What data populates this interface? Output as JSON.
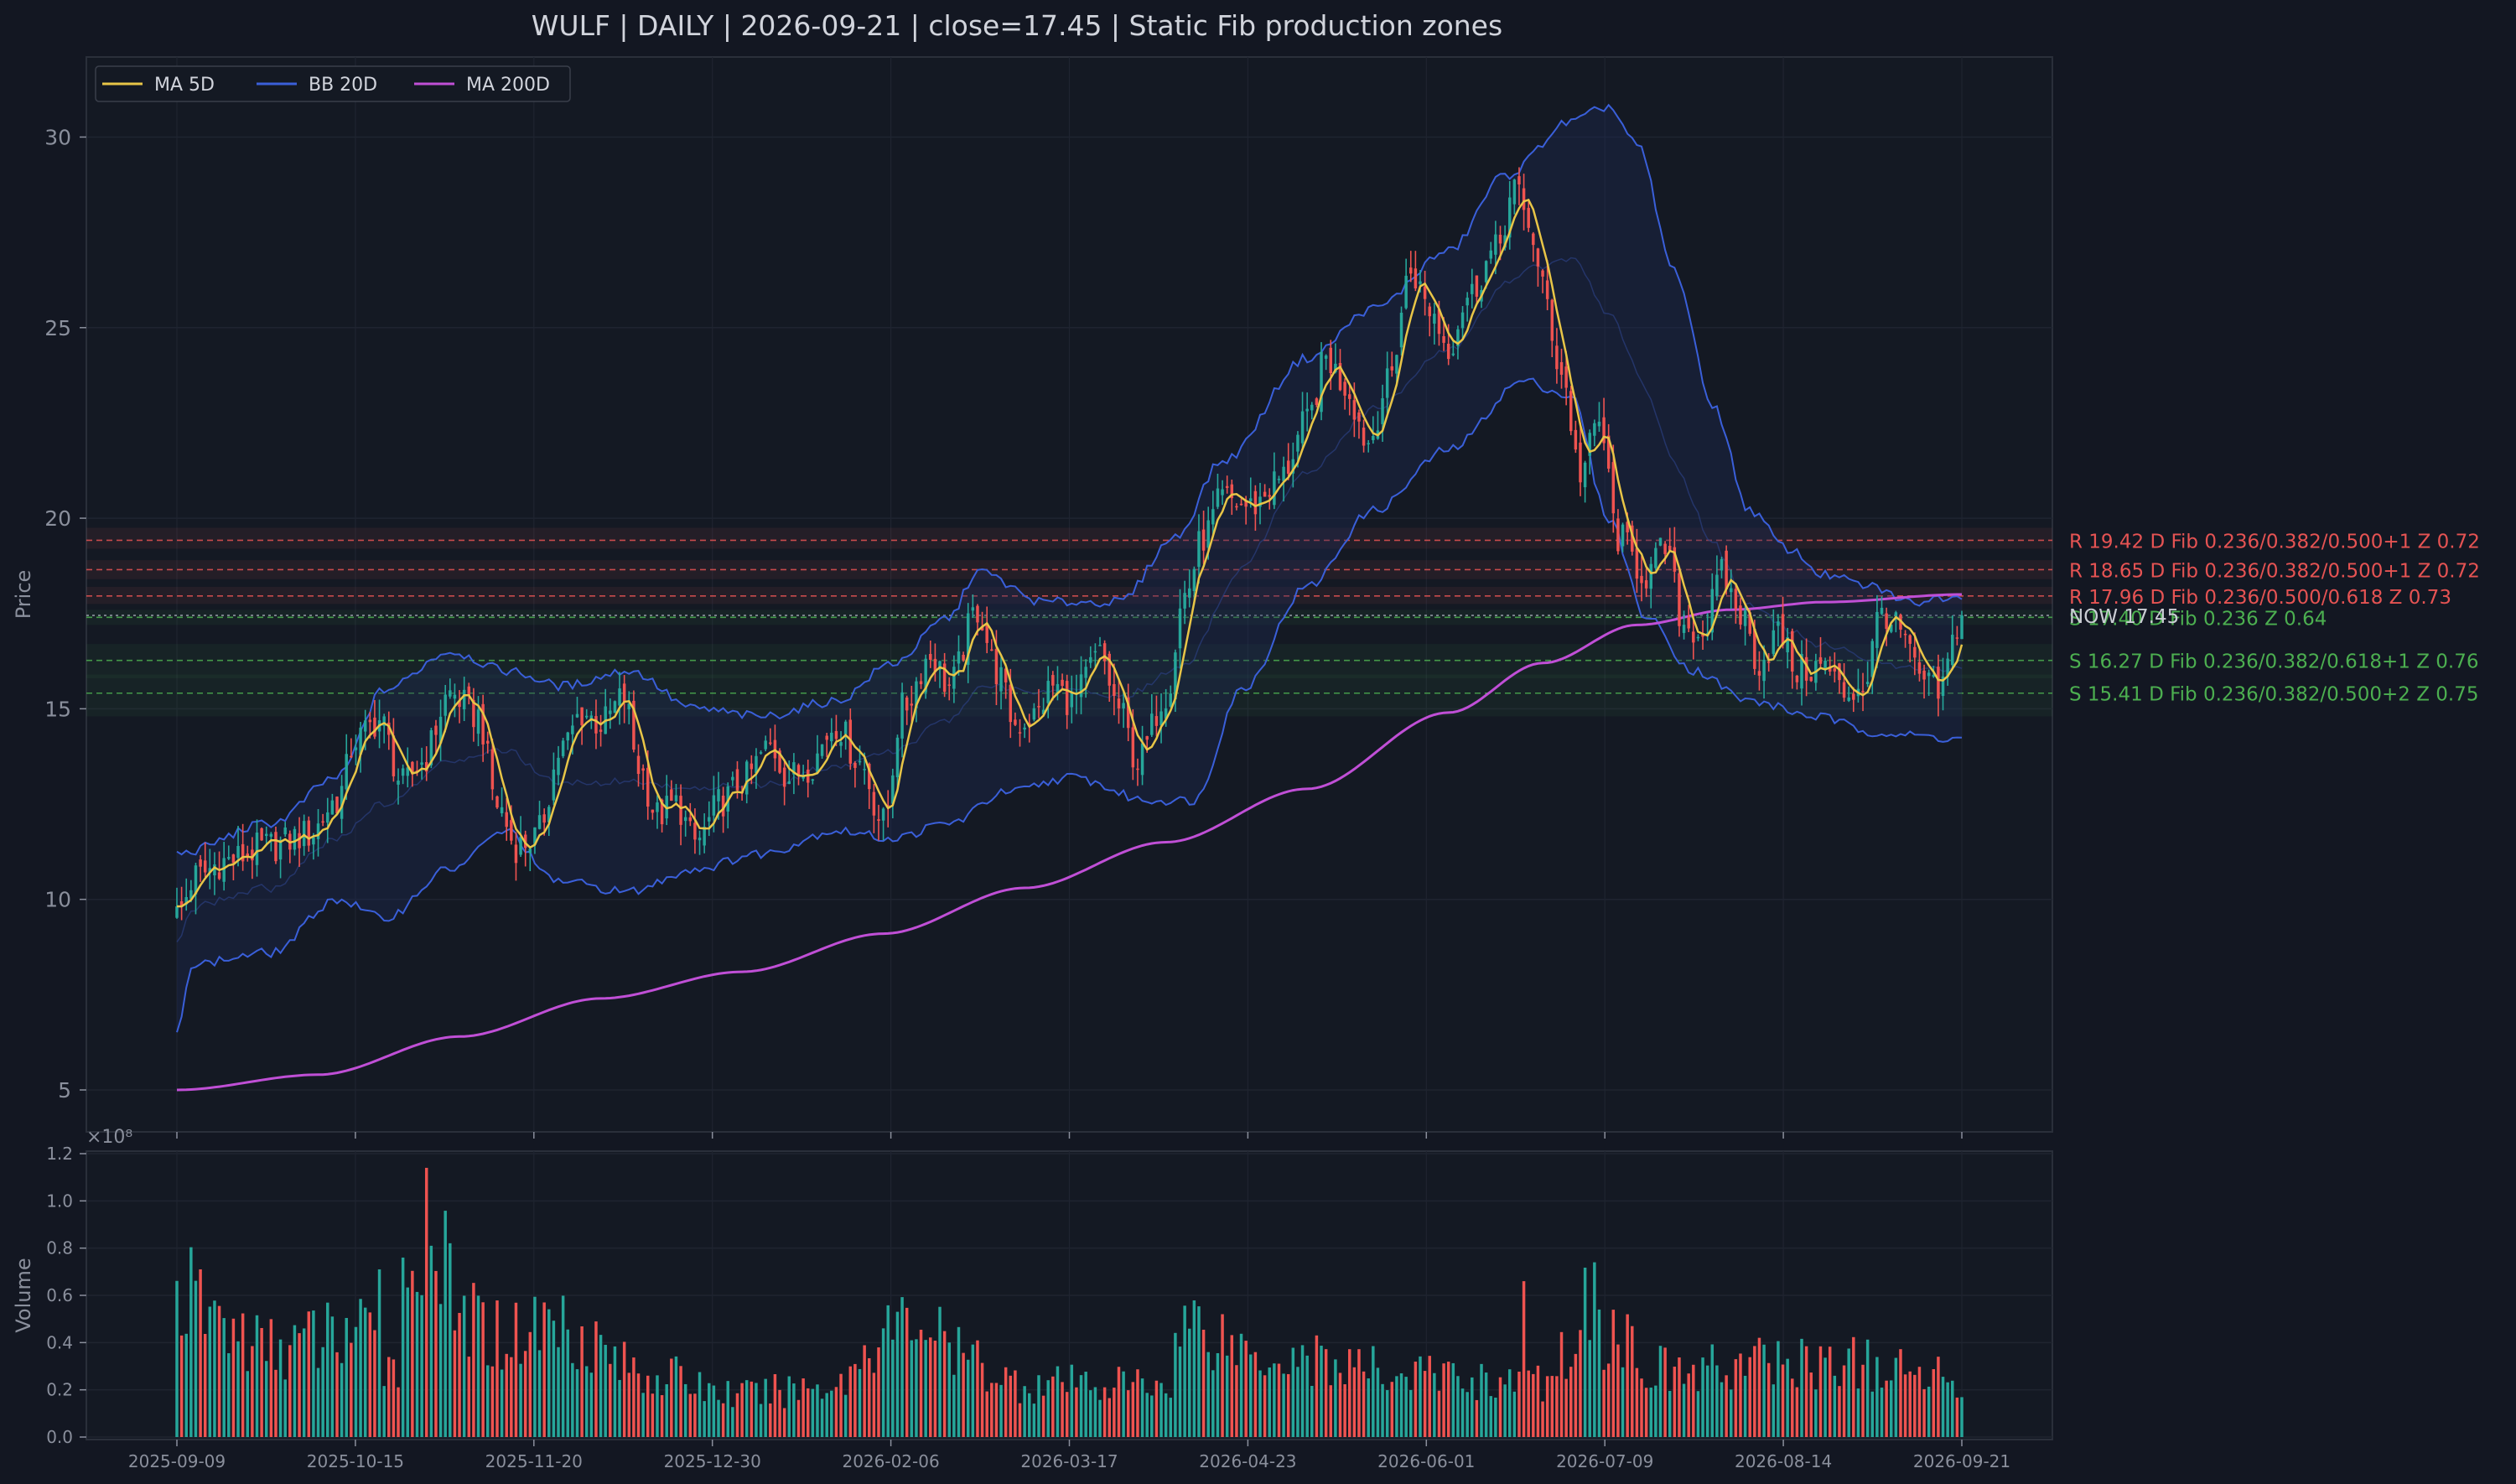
{
  "chart_data": {
    "type": "candlestick",
    "title": "WULF  |  DAILY  |  2026-09-21  |  close=17.45  |  Static Fib production zones",
    "price_panel": {
      "ylabel": "Price",
      "ylim": [
        3.9,
        32.1
      ],
      "yticks": [
        5,
        10,
        15,
        20,
        25,
        30
      ],
      "grid": true
    },
    "volume_panel": {
      "ylabel": "Volume",
      "ylim": [
        0,
        1.2
      ],
      "yticks": [
        0.0,
        0.2,
        0.4,
        0.6,
        0.8,
        1.0,
        1.2
      ],
      "ytick_labels": [
        "0.0",
        "0.2",
        "0.4",
        "0.6",
        "0.8",
        "1.0",
        "1.2"
      ],
      "scale_label": "×10⁸",
      "grid": true
    },
    "x_ticks": [
      "2025-09-09",
      "2025-10-15",
      "2025-11-20",
      "2025-12-30",
      "2026-02-06",
      "2026-03-17",
      "2026-04-23",
      "2026-06-01",
      "2026-07-09",
      "2026-08-14",
      "2026-09-21"
    ],
    "bar_count": 380,
    "legend": {
      "placement": "top-left",
      "entries": [
        {
          "label": "MA 5D",
          "color": "#e8c547"
        },
        {
          "label": "BB 20D",
          "color": "#3a5fd9"
        },
        {
          "label": "MA 200D",
          "color": "#c04fd6"
        }
      ]
    },
    "close_keyframes": [
      [
        0,
        9.6
      ],
      [
        4,
        10.6
      ],
      [
        10,
        11.0
      ],
      [
        20,
        11.4
      ],
      [
        28,
        11.7
      ],
      [
        34,
        12.6
      ],
      [
        38,
        14.2
      ],
      [
        43,
        14.7
      ],
      [
        48,
        13.0
      ],
      [
        52,
        13.6
      ],
      [
        58,
        15.4
      ],
      [
        64,
        14.8
      ],
      [
        68,
        12.5
      ],
      [
        72,
        11.4
      ],
      [
        76,
        11.6
      ],
      [
        82,
        14.0
      ],
      [
        86,
        14.9
      ],
      [
        90,
        14.6
      ],
      [
        95,
        15.3
      ],
      [
        98,
        13.5
      ],
      [
        102,
        12.2
      ],
      [
        106,
        12.5
      ],
      [
        110,
        11.5
      ],
      [
        116,
        12.6
      ],
      [
        120,
        13.1
      ],
      [
        126,
        14.0
      ],
      [
        130,
        13.2
      ],
      [
        134,
        13.5
      ],
      [
        140,
        14.6
      ],
      [
        145,
        13.6
      ],
      [
        150,
        12.0
      ],
      [
        154,
        15.0
      ],
      [
        160,
        16.4
      ],
      [
        164,
        15.6
      ],
      [
        170,
        17.6
      ],
      [
        174,
        16.0
      ],
      [
        178,
        14.6
      ],
      [
        182,
        14.8
      ],
      [
        186,
        15.6
      ],
      [
        190,
        15.2
      ],
      [
        196,
        16.4
      ],
      [
        200,
        15.0
      ],
      [
        204,
        13.6
      ],
      [
        210,
        15.4
      ],
      [
        214,
        18.0
      ],
      [
        218,
        19.5
      ],
      [
        222,
        20.5
      ],
      [
        228,
        20.3
      ],
      [
        234,
        21.0
      ],
      [
        240,
        22.5
      ],
      [
        244,
        24.2
      ],
      [
        248,
        23.5
      ],
      [
        253,
        22.0
      ],
      [
        257,
        23.5
      ],
      [
        262,
        26.5
      ],
      [
        266,
        25.5
      ],
      [
        270,
        24.5
      ],
      [
        274,
        25.8
      ],
      [
        280,
        27.0
      ],
      [
        284,
        28.6
      ],
      [
        287,
        27.8
      ],
      [
        290,
        26.0
      ],
      [
        294,
        23.8
      ],
      [
        298,
        21.2
      ],
      [
        302,
        22.5
      ],
      [
        306,
        19.5
      ],
      [
        312,
        18.5
      ],
      [
        316,
        19.2
      ],
      [
        320,
        17.2
      ],
      [
        324,
        17.0
      ],
      [
        328,
        18.5
      ],
      [
        332,
        17.5
      ],
      [
        336,
        16.2
      ],
      [
        340,
        17.0
      ],
      [
        344,
        16.0
      ],
      [
        350,
        16.1
      ],
      [
        354,
        15.4
      ],
      [
        358,
        15.6
      ],
      [
        362,
        17.6
      ],
      [
        366,
        17.0
      ],
      [
        370,
        15.8
      ],
      [
        374,
        15.4
      ],
      [
        379,
        17.45
      ]
    ],
    "bollinger_upper_keyframes": [
      [
        0,
        11.2
      ],
      [
        20,
        12.0
      ],
      [
        34,
        13.2
      ],
      [
        44,
        15.5
      ],
      [
        58,
        16.5
      ],
      [
        70,
        16.0
      ],
      [
        82,
        15.6
      ],
      [
        96,
        16.0
      ],
      [
        110,
        15.0
      ],
      [
        124,
        14.8
      ],
      [
        140,
        15.2
      ],
      [
        152,
        16.2
      ],
      [
        164,
        17.4
      ],
      [
        170,
        18.6
      ],
      [
        184,
        17.8
      ],
      [
        200,
        17.8
      ],
      [
        212,
        19.5
      ],
      [
        222,
        21.5
      ],
      [
        240,
        24.2
      ],
      [
        254,
        25.5
      ],
      [
        270,
        27.0
      ],
      [
        282,
        29.0
      ],
      [
        296,
        30.4
      ],
      [
        304,
        30.8
      ],
      [
        310,
        29.8
      ],
      [
        318,
        26.5
      ],
      [
        326,
        23.0
      ],
      [
        334,
        20.2
      ],
      [
        342,
        19.2
      ],
      [
        350,
        18.5
      ],
      [
        360,
        18.2
      ],
      [
        368,
        17.8
      ],
      [
        379,
        18.0
      ]
    ],
    "bollinger_lower_keyframes": [
      [
        0,
        6.4
      ],
      [
        3,
        8.3
      ],
      [
        20,
        8.6
      ],
      [
        34,
        10.0
      ],
      [
        44,
        9.5
      ],
      [
        58,
        10.8
      ],
      [
        70,
        11.8
      ],
      [
        80,
        10.5
      ],
      [
        96,
        10.2
      ],
      [
        110,
        10.8
      ],
      [
        124,
        11.2
      ],
      [
        140,
        11.8
      ],
      [
        152,
        11.6
      ],
      [
        164,
        12.0
      ],
      [
        176,
        12.8
      ],
      [
        190,
        13.2
      ],
      [
        206,
        12.6
      ],
      [
        216,
        12.6
      ],
      [
        226,
        15.5
      ],
      [
        240,
        18.2
      ],
      [
        254,
        20.2
      ],
      [
        270,
        21.8
      ],
      [
        286,
        23.6
      ],
      [
        296,
        23.2
      ],
      [
        304,
        20.0
      ],
      [
        312,
        17.4
      ],
      [
        322,
        16.0
      ],
      [
        334,
        15.2
      ],
      [
        348,
        14.8
      ],
      [
        360,
        14.4
      ],
      [
        368,
        14.3
      ],
      [
        379,
        14.2
      ]
    ],
    "ma200_keyframes": [
      [
        0,
        5.0
      ],
      [
        30,
        5.4
      ],
      [
        60,
        6.4
      ],
      [
        90,
        7.4
      ],
      [
        120,
        8.1
      ],
      [
        150,
        9.1
      ],
      [
        180,
        10.3
      ],
      [
        210,
        11.5
      ],
      [
        240,
        12.9
      ],
      [
        270,
        14.9
      ],
      [
        290,
        16.2
      ],
      [
        310,
        17.2
      ],
      [
        330,
        17.6
      ],
      [
        350,
        17.8
      ],
      [
        379,
        18.0
      ]
    ],
    "volume_profile": [
      [
        0,
        0.66
      ],
      [
        20,
        0.42
      ],
      [
        38,
        0.5
      ],
      [
        46,
        0.35
      ],
      [
        54,
        1.0
      ],
      [
        60,
        0.55
      ],
      [
        70,
        0.48
      ],
      [
        80,
        0.55
      ],
      [
        100,
        0.3
      ],
      [
        120,
        0.2
      ],
      [
        140,
        0.25
      ],
      [
        150,
        0.5
      ],
      [
        158,
        0.55
      ],
      [
        166,
        0.38
      ],
      [
        180,
        0.25
      ],
      [
        210,
        0.25
      ],
      [
        214,
        0.55
      ],
      [
        230,
        0.4
      ],
      [
        260,
        0.3
      ],
      [
        290,
        0.25
      ],
      [
        300,
        0.6
      ],
      [
        304,
        0.48
      ],
      [
        318,
        0.3
      ],
      [
        336,
        0.35
      ],
      [
        354,
        0.35
      ],
      [
        366,
        0.3
      ],
      [
        379,
        0.3
      ]
    ],
    "volume_spikes": {
      "53": 1.14,
      "54": 0.81,
      "286": 0.66,
      "301": 0.74,
      "302": 0.54,
      "48": 0.76,
      "43": 0.71
    },
    "zones": [
      {
        "kind": "resistance",
        "price": 19.42,
        "label": "R 19.42  D  Fib 0.236/0.382/0.500+1  Z 0.72",
        "color": "#e55353",
        "band": [
          19.2,
          19.75
        ]
      },
      {
        "kind": "resistance",
        "price": 18.65,
        "label": "R 18.65  D  Fib 0.236/0.382/0.500+1  Z 0.72",
        "color": "#e55353",
        "band": [
          18.4,
          18.9
        ]
      },
      {
        "kind": "resistance",
        "price": 17.96,
        "label": "R 17.96  D  Fib 0.236/0.500/0.618  Z 0.73",
        "color": "#e55353",
        "band": [
          17.75,
          18.2
        ]
      },
      {
        "kind": "support",
        "price": 17.4,
        "label": "S 17.40  D  Fib 0.236  Z 0.64",
        "color": "#4caf50",
        "band": [
          17.2,
          17.6
        ]
      },
      {
        "kind": "support",
        "price": 16.27,
        "label": "S 16.27  D  Fib 0.236/0.382/0.618+1  Z 0.76",
        "color": "#4caf50",
        "band": [
          15.8,
          16.7
        ]
      },
      {
        "kind": "support",
        "price": 15.41,
        "label": "S 15.41  D  Fib 0.236/0.382/0.500+2  Z 0.75",
        "color": "#4caf50",
        "band": [
          14.8,
          15.9
        ]
      }
    ],
    "now_label": "NOW 17.45",
    "now_price": 17.45,
    "colors": {
      "background": "#131722",
      "panel": "#141923",
      "up": "#26a69a",
      "down": "#ef5350",
      "text": "#d1d4dc",
      "muted": "#8a8f9c",
      "grid": "#1f2430"
    }
  }
}
